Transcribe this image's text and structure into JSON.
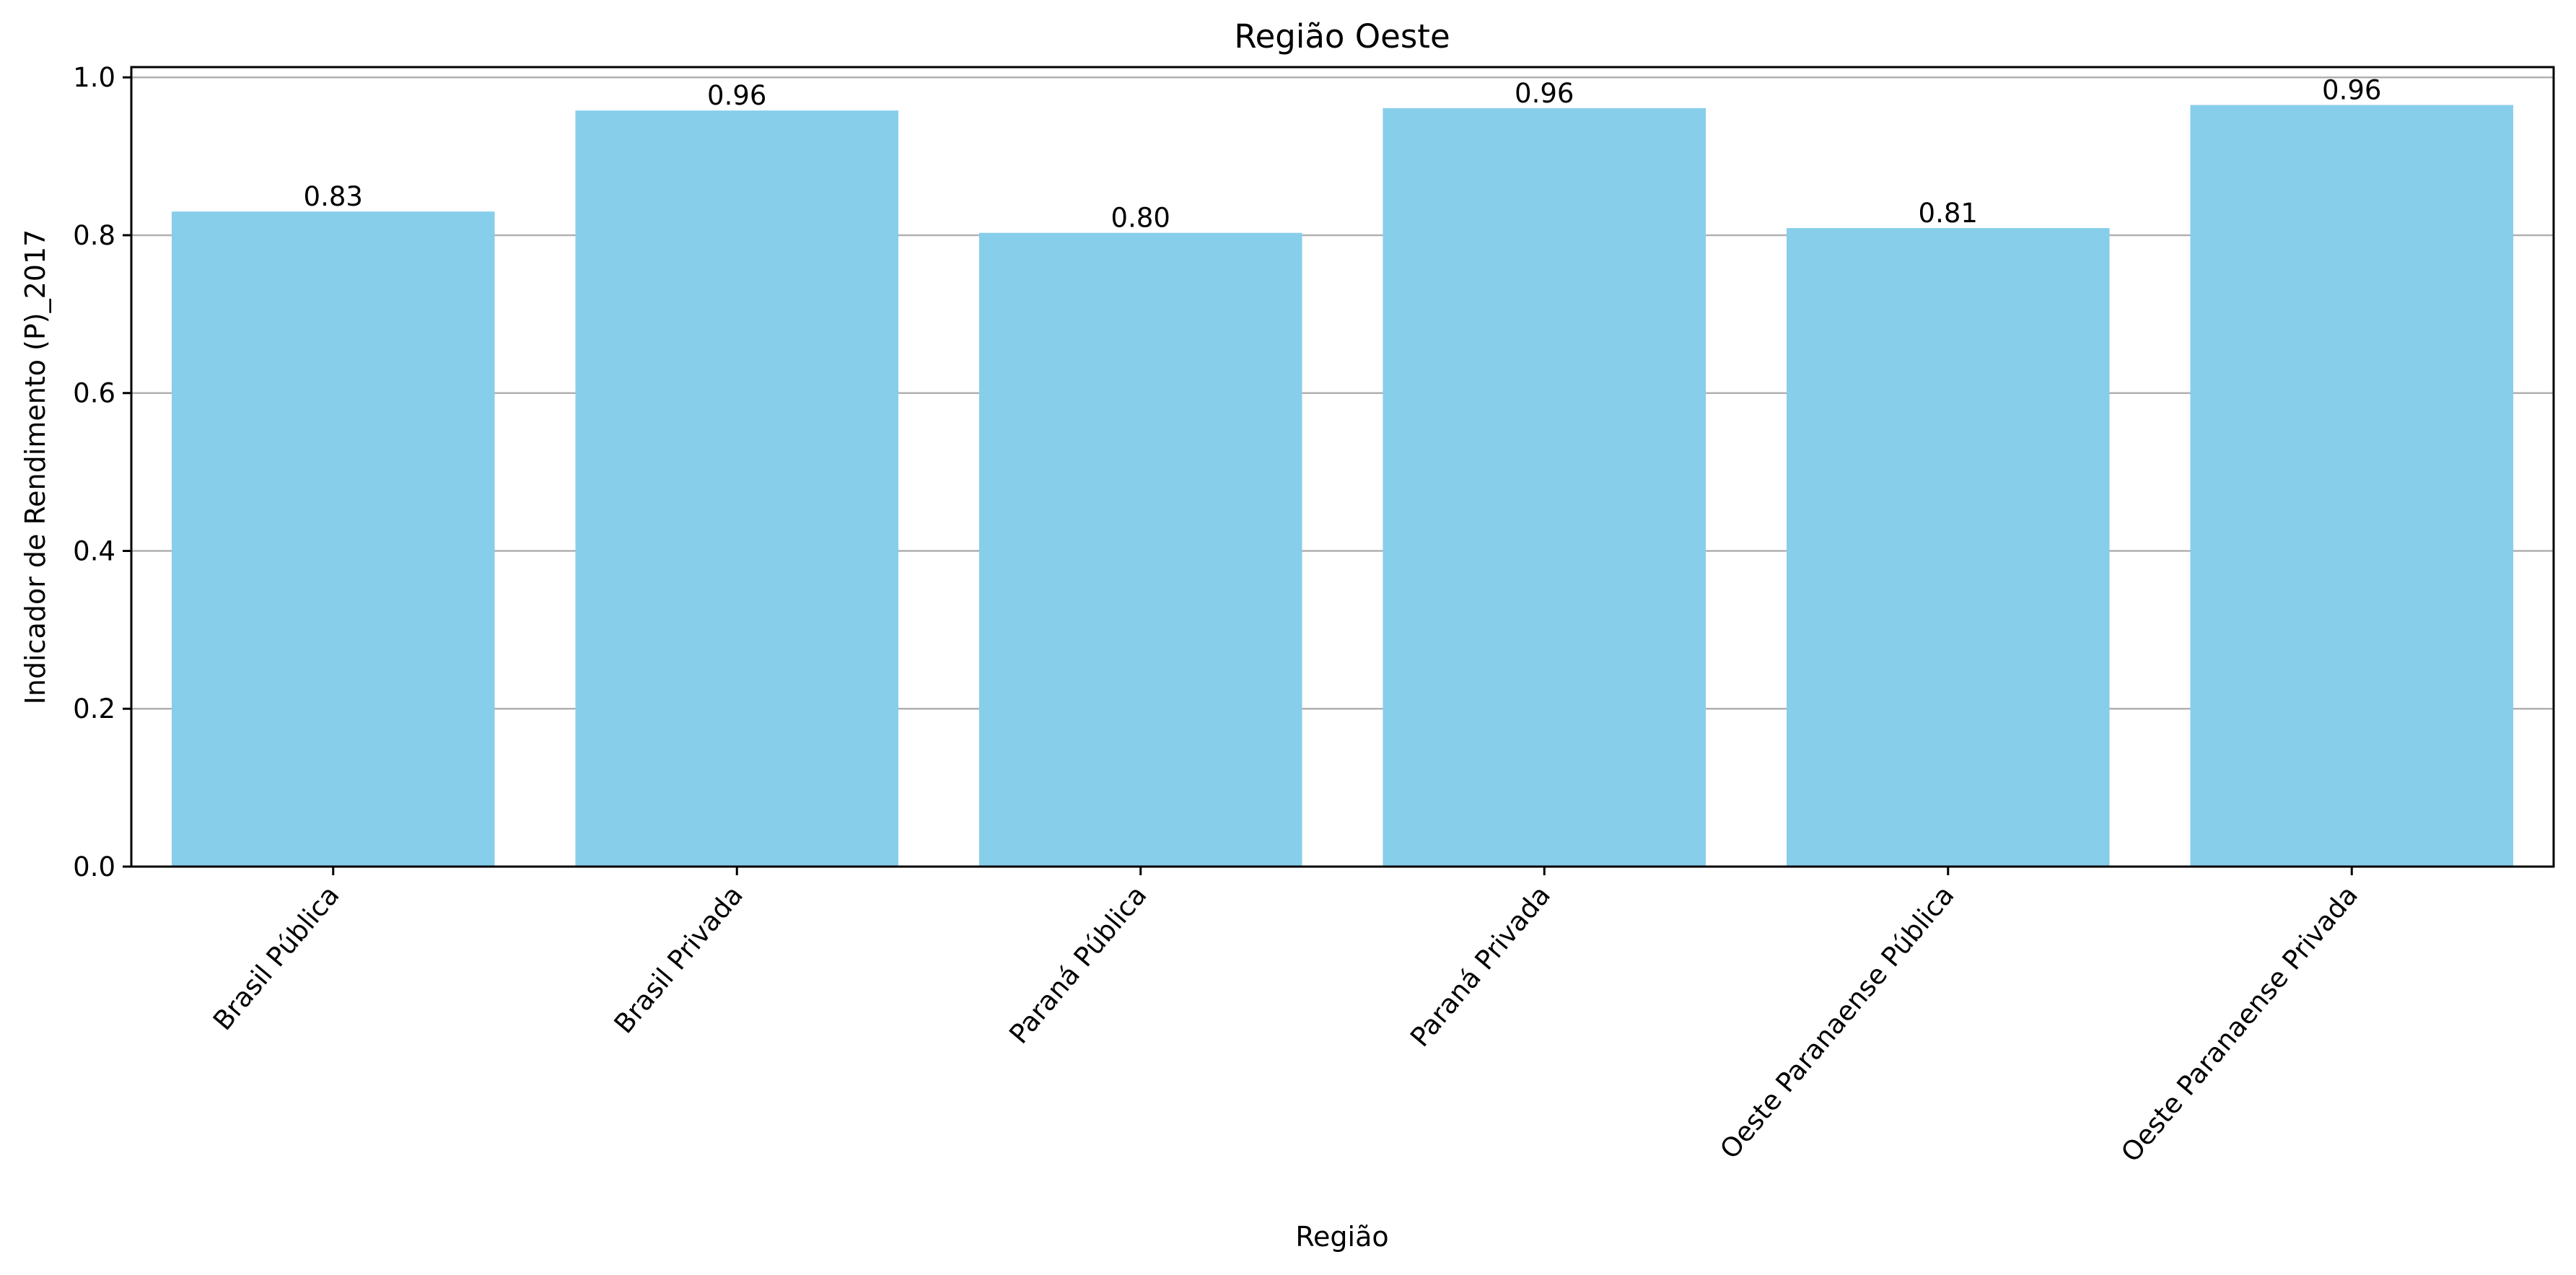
{
  "chart_data": {
    "type": "bar",
    "title": "Região Oeste",
    "xlabel": "Região",
    "ylabel": "Indicador de Rendimento (P)_2017",
    "categories": [
      "Brasil Pública",
      "Brasil Privada",
      "Paraná Pública",
      "Paraná Privada",
      "Oeste Paranaense Pública",
      "Oeste Paranaense Privada"
    ],
    "values": [
      0.83,
      0.958,
      0.803,
      0.961,
      0.809,
      0.965
    ],
    "value_labels": [
      "0.83",
      "0.96",
      "0.80",
      "0.96",
      "0.81",
      "0.96"
    ],
    "ylim": [
      0,
      1.013
    ],
    "yticks": [
      0.0,
      0.2,
      0.4,
      0.6,
      0.8,
      1.0
    ],
    "ytick_labels": [
      "0.0",
      "0.2",
      "0.4",
      "0.6",
      "0.8",
      "1.0"
    ],
    "grid": "horizontal",
    "bar_color": "#87CEEB"
  }
}
